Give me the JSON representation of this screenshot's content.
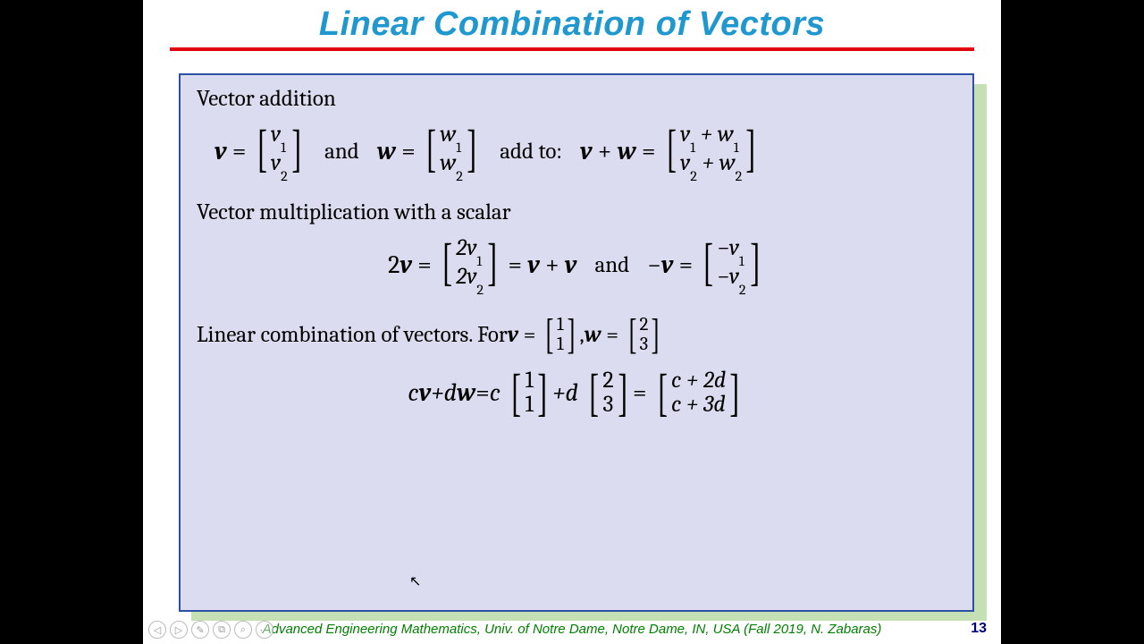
{
  "title": "Linear Combination of Vectors",
  "colors": {
    "title_color": "#1f97cf",
    "underline_color": "#e3000f",
    "box_bg": "#dcdcf0",
    "box_border": "#2e4fa3",
    "shadow_bg": "#c5e0b4",
    "page_bg": "#ffffff",
    "outer_bg": "#000000",
    "footer_color": "#008000",
    "pagenum_color": "#000080"
  },
  "section1": {
    "label": "Vector addition",
    "v_sym": "v",
    "w_sym": "w",
    "v_entries": [
      "v",
      "v"
    ],
    "v_subs": [
      "1",
      "2"
    ],
    "w_entries": [
      "w",
      "w"
    ],
    "w_subs": [
      "1",
      "2"
    ],
    "and_text": "and",
    "addto_text": "add to:",
    "sum_lhs": "v + w",
    "sum_entries_top": "v₁ + w₁",
    "sum_r1_a": "v",
    "sum_r1_as": "1",
    "sum_r1_b": "w",
    "sum_r1_bs": "1",
    "sum_r2_a": "v",
    "sum_r2_as": "2",
    "sum_r2_b": "w",
    "sum_r2_bs": "2"
  },
  "section2": {
    "label": "Vector multiplication with a scalar",
    "two": "2",
    "v_sym": "v",
    "e1_a": "2v",
    "e1_as": "1",
    "e2_a": "2v",
    "e2_as": "2",
    "eq_mid": " = ",
    "vpv": "v + v",
    "and_text": "and",
    "neg": "− ",
    "neg_e1": "−v",
    "neg_e1s": "1",
    "neg_e2": "−v",
    "neg_e2s": "2"
  },
  "section3": {
    "label_prefix": "Linear combination of vectors. For ",
    "v_sym": "v",
    "w_sym": "w",
    "v_vals": [
      "1",
      "1"
    ],
    "w_vals": [
      "2",
      "3"
    ],
    "comma": ", ",
    "c": "c",
    "d": "d",
    "plus": " + ",
    "eq": " = ",
    "res_r1": "c + 2d",
    "res_r2": "c + 3d"
  },
  "footer": "Advanced Engineering Mathematics, Univ. of Notre Dame, Notre Dame, IN, USA (Fall 2019, N. Zabaras)",
  "pagenum": "13",
  "controls": [
    "◁",
    "▷",
    "✎",
    "⧉",
    "⌕",
    "⋯"
  ]
}
